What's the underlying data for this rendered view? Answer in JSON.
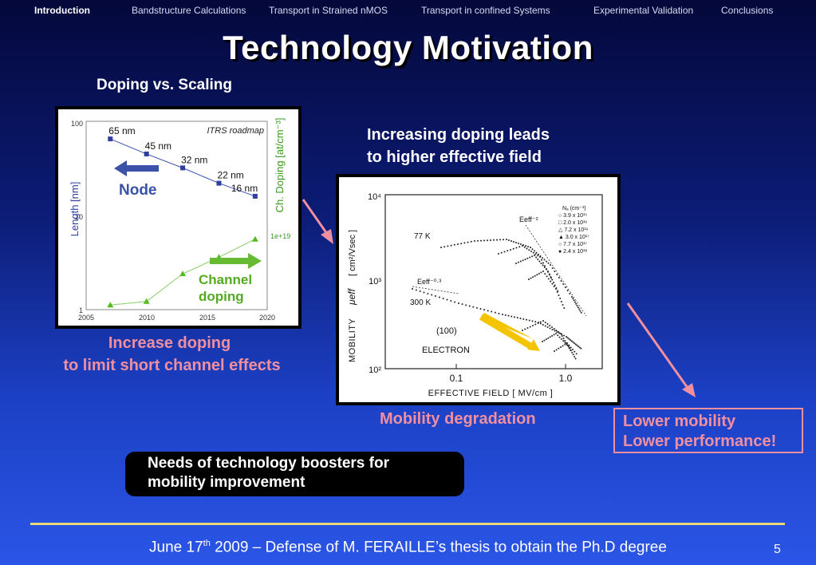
{
  "nav": {
    "items": [
      {
        "label": "Introduction",
        "active": true
      },
      {
        "label": "Bandstructure Calculations",
        "active": false
      },
      {
        "label": "Transport in Strained nMOS",
        "active": false
      },
      {
        "label": "Transport in confined Systems",
        "active": false
      },
      {
        "label": "Experimental Validation",
        "active": false
      },
      {
        "label": "Conclusions",
        "active": false
      }
    ]
  },
  "slide": {
    "title": "Technology Motivation",
    "subtitle": "Doping vs. Scaling",
    "increasing_line1": "Increasing doping leads",
    "increasing_line2": "to higher effective field",
    "increase_line1": "Increase doping",
    "increase_line2": "to limit short channel effects",
    "mobility_degradation": "Mobility degradation",
    "lower_line1": "Lower mobility",
    "lower_line2": "Lower performance!",
    "boosters_line1": "Needs of technology boosters for",
    "boosters_line2": "mobility improvement",
    "colors": {
      "pink": "#f08fa0",
      "node_blue": "#3a52a8",
      "channel_green": "#66bb33",
      "arrow_yellow": "#f5c400"
    }
  },
  "footer": {
    "prefix": "June 17",
    "sup": "th",
    "suffix": " 2009 – Defense of M. FERAILLE’s thesis to obtain the Ph.D degree",
    "page": "5"
  },
  "chart_data": [
    {
      "type": "line",
      "annotation": "ITRS roadmap",
      "xlim": [
        2005,
        2020
      ],
      "x_ticks": [
        "2005",
        "2010",
        "2015",
        "2020"
      ],
      "y_left_ticks": [
        "100",
        "10",
        "1"
      ],
      "y_left_label": "Length [nm]",
      "y_right_label": "Ch. Doping [at/cm⁻³]",
      "y_right_tick": "1e+19",
      "node_label": "Node",
      "channel_label_line1": "Channel",
      "channel_label_line2": "doping",
      "length_series": {
        "x": [
          2007,
          2010,
          2013,
          2016,
          2019
        ],
        "y": [
          65,
          45,
          32,
          22,
          16
        ],
        "labels": [
          "65 nm",
          "45 nm",
          "32 nm",
          "22 nm",
          "16 nm"
        ]
      },
      "doping_series": {
        "x": [
          2007,
          2010,
          2013,
          2016,
          2019
        ],
        "y_left_equiv": [
          1.12,
          1.22,
          2.4,
          3.6,
          5.6
        ]
      }
    },
    {
      "type": "scatter",
      "xlabel": "EFFECTIVE FIELD [ MV/cm ]",
      "ylabel": "MOBILITY",
      "ylabel_sym": "μeff",
      "ylabel_unit": "[ cm²/Vsec ]",
      "x_ticks": [
        "0.1",
        "1.0"
      ],
      "y_ticks": [
        "10⁴",
        "10³",
        "10²"
      ],
      "temp_77": "77 K",
      "temp_300": "300 K",
      "orientation": "(100)",
      "carrier": "ELECTRON",
      "eeff_upper": "Eeff⁻²",
      "eeff_lower": "Eeff⁻⁰·³",
      "legend_header": "Nₐ (cm⁻³)",
      "legend": [
        "3.9 x 10¹⁵",
        "2.0 x 10¹⁶",
        "7.2 x 10¹⁶",
        "3.0 x 10¹⁷",
        "7.7 x 10¹⁷",
        "2.4 x 10¹⁸"
      ]
    }
  ]
}
